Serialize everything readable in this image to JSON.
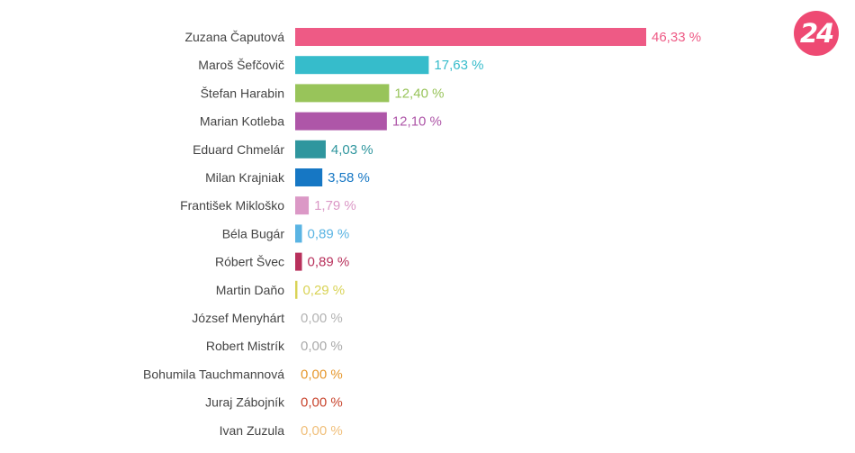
{
  "logo": {
    "text": "24",
    "color": "#ee4a73"
  },
  "chart_data": {
    "type": "bar",
    "orientation": "horizontal",
    "xlim": [
      0,
      50
    ],
    "grid": false,
    "legend": "none",
    "categories": [
      "Zuzana Čaputová",
      "Maroš Šefčovič",
      "Štefan Harabin",
      "Marian Kotleba",
      "Eduard Chmelár",
      "Milan Krajniak",
      "František Mikloško",
      "Béla Bugár",
      "Róbert Švec",
      "Martin Daňo",
      "József Menyhárt",
      "Robert Mistrík",
      "Bohumila Tauchmannová",
      "Juraj Zábojník",
      "Ivan Zuzula"
    ],
    "values": [
      46.33,
      17.63,
      12.4,
      12.1,
      4.03,
      3.58,
      1.79,
      0.89,
      0.89,
      0.29,
      0.0,
      0.0,
      0.0,
      0.0,
      0.0
    ],
    "value_labels": [
      "46,33 %",
      "17,63 %",
      "12,40 %",
      "12,10 %",
      "4,03 %",
      "3,58 %",
      "1,79 %",
      "0,89 %",
      "0,89 %",
      "0,29 %",
      "0,00 %",
      "0,00 %",
      "0,00 %",
      "0,00 %",
      "0,00 %"
    ],
    "colors": [
      "#ee5a85",
      "#36bccb",
      "#98c45a",
      "#ae56a8",
      "#2f969e",
      "#1677c4",
      "#db98c6",
      "#5ab4e3",
      "#b8315c",
      "#d9d356",
      "#b3b3b3",
      "#aaaaaa",
      "#e6982e",
      "#c9462f",
      "#f0bf7a"
    ]
  }
}
